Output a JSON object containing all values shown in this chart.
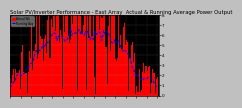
{
  "title": "Solar PV/Inverter Performance - East Array  Actual & Running Average Power Output",
  "ylabel": "Actual Wh",
  "bg_color": "#c0c0c0",
  "plot_bg": "#000000",
  "grid_color": "#888888",
  "bar_color": "#ff0000",
  "bar_edge_color": "#ff0000",
  "line_color": "#0000ff",
  "line_style": "--",
  "num_points": 130,
  "bar_peak": 8,
  "ylim_max": 8,
  "title_fontsize": 3.8,
  "axis_fontsize": 3.0,
  "legend_labels": [
    "Actual Wh",
    "Running Avg"
  ],
  "legend_colors": [
    "#ff0000",
    "#0000ff"
  ],
  "seed": 99
}
